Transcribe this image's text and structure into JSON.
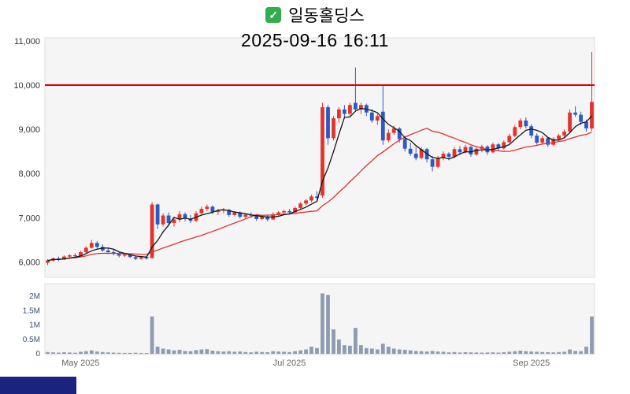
{
  "header": {
    "check_glyph": "✓"
  },
  "colors": {
    "check_green": "#2fae4d",
    "candle_up": "#e2342c",
    "candle_down": "#2e58c5",
    "ma_fast": "#151515",
    "ma_slow": "#e03131",
    "resistance": "#e00000",
    "volume_bar": "#8f9bb0",
    "plot_bg": "#f5f5f6",
    "plot_border": "#dddddd",
    "axis_text": "#333333",
    "axis_muted": "#666666",
    "volume_axis_text": "#3f4e6e",
    "taskbar": "#1a237e"
  },
  "chart_data": {
    "type": "candlestick_with_volume",
    "title": "일동홀딩스",
    "datetime": "2025-09-16 16:11",
    "resistance_level": 10000,
    "price_axis": {
      "ticks": [
        11000,
        10000,
        9000,
        8000,
        7000,
        6000
      ],
      "labels": [
        "11,000",
        "10,000",
        "9,000",
        "8,000",
        "7,000",
        "6,000"
      ],
      "range": [
        5650,
        11070
      ]
    },
    "volume_axis": {
      "ticks": [
        2000000,
        1500000,
        1000000,
        500000,
        0
      ],
      "labels": [
        "2M",
        "1.5M",
        "1M",
        "0.5M",
        "0"
      ],
      "range": [
        0,
        2350000
      ]
    },
    "x_ticks": [
      {
        "index": 6,
        "label": "May 2025"
      },
      {
        "index": 44,
        "label": "Jul 2025"
      },
      {
        "index": 88,
        "label": "Sep 2025"
      }
    ],
    "moving_averages": [
      {
        "name": "MA-slow",
        "window": 20,
        "color_key": "ma_slow"
      },
      {
        "name": "MA-fast",
        "window": 5,
        "color_key": "ma_fast"
      }
    ],
    "open": [
      5980,
      6030,
      6080,
      6050,
      6120,
      6150,
      6130,
      6220,
      6320,
      6430,
      6340,
      6260,
      6220,
      6180,
      6140,
      6170,
      6110,
      6070,
      6110,
      6090,
      7300,
      6850,
      7050,
      6880,
      6960,
      7080,
      6980,
      6930,
      7100,
      7200,
      7250,
      7130,
      7160,
      7180,
      7060,
      7120,
      7020,
      7070,
      7050,
      6970,
      7030,
      6960,
      7080,
      7120,
      7150,
      7120,
      7220,
      7320,
      7390,
      7480,
      7500,
      9500,
      8800,
      9250,
      9450,
      9350,
      9600,
      9450,
      9550,
      9380,
      9200,
      9400,
      8750,
      8920,
      9020,
      8780,
      8560,
      8450,
      8350,
      8550,
      8320,
      8150,
      8350,
      8450,
      8380,
      8550,
      8480,
      8600,
      8430,
      8560,
      8610,
      8480,
      8660,
      8570,
      8710,
      8850,
      9050,
      9200,
      9070,
      8860,
      8700,
      8800,
      8650,
      8780,
      8860,
      8950,
      9380,
      9330,
      9170,
      9020
    ],
    "high": [
      6060,
      6100,
      6120,
      6150,
      6180,
      6200,
      6250,
      6350,
      6500,
      6470,
      6400,
      6300,
      6280,
      6220,
      6200,
      6190,
      6150,
      6130,
      6140,
      7350,
      7320,
      7100,
      7120,
      7000,
      7150,
      7120,
      7060,
      7150,
      7250,
      7300,
      7280,
      7200,
      7220,
      7200,
      7150,
      7140,
      7100,
      7120,
      7080,
      7060,
      7060,
      7120,
      7150,
      7180,
      7200,
      7250,
      7350,
      7420,
      7520,
      7600,
      9600,
      9550,
      9300,
      9500,
      9550,
      9600,
      10400,
      9600,
      9580,
      9450,
      9350,
      10000,
      9000,
      9080,
      9050,
      8850,
      8700,
      8600,
      8600,
      8580,
      8400,
      8400,
      8500,
      8480,
      8600,
      8620,
      8650,
      8630,
      8600,
      8650,
      8640,
      8700,
      8690,
      8750,
      8900,
      9100,
      9250,
      9270,
      9120,
      8910,
      8850,
      8830,
      8820,
      8900,
      9000,
      9450,
      9520,
      9400,
      9220,
      10750
    ],
    "low": [
      5930,
      6000,
      6020,
      6040,
      6080,
      6100,
      6120,
      6200,
      6300,
      6300,
      6230,
      6180,
      6150,
      6100,
      6110,
      6090,
      6040,
      6050,
      6050,
      6080,
      6750,
      6800,
      6820,
      6800,
      6900,
      6920,
      6880,
      6900,
      7050,
      7150,
      7080,
      7060,
      7100,
      7020,
      7030,
      6980,
      6990,
      7000,
      6930,
      6950,
      6920,
      6950,
      7040,
      7080,
      7080,
      7100,
      7180,
      7280,
      7350,
      7380,
      7450,
      8650,
      8750,
      9150,
      9250,
      9300,
      9400,
      9350,
      9300,
      9150,
      9100,
      8650,
      8700,
      8870,
      8700,
      8500,
      8400,
      8300,
      8320,
      8250,
      8050,
      8120,
      8300,
      8300,
      8350,
      8420,
      8450,
      8380,
      8400,
      8480,
      8420,
      8460,
      8520,
      8540,
      8680,
      8820,
      9000,
      9020,
      8800,
      8650,
      8660,
      8600,
      8620,
      8740,
      8820,
      8920,
      9280,
      9100,
      8950,
      8960
    ],
    "close": [
      6030,
      6080,
      6050,
      6120,
      6150,
      6130,
      6220,
      6320,
      6430,
      6340,
      6260,
      6220,
      6180,
      6140,
      6170,
      6110,
      6070,
      6110,
      6080,
      7300,
      6850,
      7050,
      6880,
      6960,
      7080,
      6980,
      6930,
      7100,
      7200,
      7250,
      7130,
      7160,
      7180,
      7060,
      7120,
      7020,
      7070,
      7050,
      6970,
      7030,
      6960,
      7080,
      7120,
      7150,
      7120,
      7220,
      7320,
      7390,
      7480,
      7450,
      9500,
      8800,
      9250,
      9450,
      9350,
      9550,
      9450,
      9550,
      9380,
      9200,
      9300,
      8750,
      8920,
      9020,
      8780,
      8560,
      8450,
      8350,
      8550,
      8320,
      8150,
      8350,
      8450,
      8380,
      8550,
      8480,
      8600,
      8430,
      8560,
      8610,
      8480,
      8660,
      8570,
      8710,
      8850,
      9050,
      9200,
      9070,
      8860,
      8700,
      8800,
      8650,
      8780,
      8860,
      8950,
      9380,
      9330,
      9170,
      9020,
      9620
    ],
    "volume": [
      60000,
      50000,
      40000,
      55000,
      45000,
      35000,
      70000,
      90000,
      120000,
      80000,
      60000,
      50000,
      40000,
      35000,
      30000,
      30000,
      35000,
      25000,
      20000,
      1300000,
      250000,
      180000,
      150000,
      120000,
      140000,
      100000,
      90000,
      130000,
      150000,
      160000,
      110000,
      90000,
      80000,
      90000,
      70000,
      80000,
      60000,
      50000,
      70000,
      60000,
      55000,
      90000,
      80000,
      70000,
      60000,
      90000,
      120000,
      150000,
      250000,
      200000,
      2100000,
      2050000,
      850000,
      500000,
      300000,
      280000,
      900000,
      300000,
      200000,
      180000,
      150000,
      350000,
      250000,
      180000,
      150000,
      140000,
      120000,
      100000,
      90000,
      80000,
      100000,
      80000,
      70000,
      50000,
      60000,
      45000,
      55000,
      50000,
      45000,
      40000,
      45000,
      50000,
      40000,
      55000,
      70000,
      90000,
      110000,
      90000,
      80000,
      70000,
      60000,
      55000,
      50000,
      60000,
      70000,
      150000,
      100000,
      90000,
      250000,
      1300000
    ]
  }
}
